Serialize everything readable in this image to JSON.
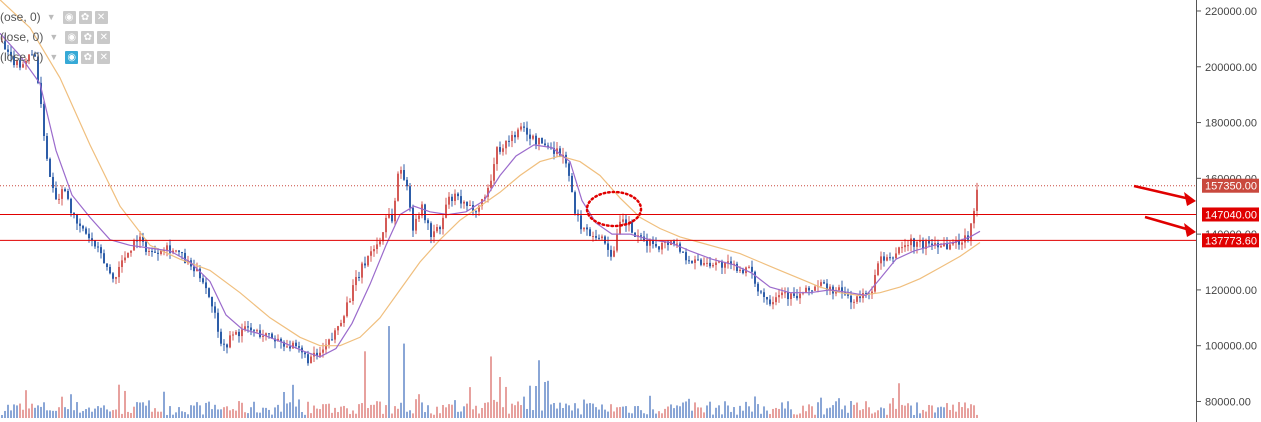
{
  "chart_data": {
    "type": "candlestick",
    "y_axis": {
      "ylim": [
        73000,
        222500
      ],
      "ticks": [
        220000,
        200000,
        180000,
        160000,
        140000,
        120000,
        100000,
        80000
      ],
      "tick_labels": [
        "220000.00",
        "200000.00",
        "180000.00",
        "160000.00",
        "140000.00",
        "120000.00",
        "100000.00",
        "80000.00"
      ]
    },
    "grid": false,
    "last_price": {
      "value": 157350,
      "label": "157350.00",
      "color": "#c9493e",
      "style": "dotted"
    },
    "levels": [
      {
        "value": 147040,
        "label": "147040.00",
        "color": "#e00000"
      },
      {
        "value": 137773.6,
        "label": "137773.60",
        "color": "#e00000"
      }
    ],
    "close_path": [
      [
        0,
        209000
      ],
      [
        8,
        203000
      ],
      [
        20,
        201000
      ],
      [
        34,
        205000
      ],
      [
        40,
        185000
      ],
      [
        48,
        162000
      ],
      [
        56,
        153000
      ],
      [
        64,
        157000
      ],
      [
        74,
        144000
      ],
      [
        86,
        140000
      ],
      [
        100,
        132000
      ],
      [
        112,
        124000
      ],
      [
        124,
        132000
      ],
      [
        136,
        139000
      ],
      [
        150,
        133000
      ],
      [
        164,
        136000
      ],
      [
        178,
        133000
      ],
      [
        190,
        128000
      ],
      [
        202,
        124000
      ],
      [
        212,
        114000
      ],
      [
        222,
        99000
      ],
      [
        232,
        104000
      ],
      [
        246,
        106000
      ],
      [
        262,
        104000
      ],
      [
        278,
        102000
      ],
      [
        294,
        99000
      ],
      [
        308,
        95000
      ],
      [
        320,
        97000
      ],
      [
        332,
        103000
      ],
      [
        344,
        113000
      ],
      [
        356,
        124000
      ],
      [
        368,
        133000
      ],
      [
        380,
        138000
      ],
      [
        386,
        148000
      ],
      [
        392,
        145000
      ],
      [
        398,
        165000
      ],
      [
        404,
        160000
      ],
      [
        412,
        143000
      ],
      [
        420,
        150000
      ],
      [
        430,
        140000
      ],
      [
        440,
        142000
      ],
      [
        446,
        152000
      ],
      [
        456,
        153000
      ],
      [
        466,
        149000
      ],
      [
        478,
        150000
      ],
      [
        488,
        157000
      ],
      [
        496,
        170000
      ],
      [
        506,
        173000
      ],
      [
        514,
        176000
      ],
      [
        522,
        178000
      ],
      [
        532,
        174000
      ],
      [
        544,
        172000
      ],
      [
        556,
        170000
      ],
      [
        566,
        166000
      ],
      [
        574,
        147000
      ],
      [
        584,
        141000
      ],
      [
        596,
        140000
      ],
      [
        604,
        137000
      ],
      [
        612,
        132000
      ],
      [
        620,
        145000
      ],
      [
        628,
        143000
      ],
      [
        636,
        138000
      ],
      [
        648,
        137000
      ],
      [
        660,
        136000
      ],
      [
        672,
        138000
      ],
      [
        682,
        133000
      ],
      [
        694,
        130000
      ],
      [
        708,
        130000
      ],
      [
        722,
        129000
      ],
      [
        736,
        128000
      ],
      [
        748,
        127000
      ],
      [
        758,
        120000
      ],
      [
        768,
        116000
      ],
      [
        780,
        120000
      ],
      [
        792,
        117000
      ],
      [
        804,
        119000
      ],
      [
        818,
        122000
      ],
      [
        830,
        120000
      ],
      [
        842,
        119000
      ],
      [
        852,
        116000
      ],
      [
        864,
        118000
      ],
      [
        872,
        121000
      ],
      [
        878,
        131000
      ],
      [
        888,
        130000
      ],
      [
        898,
        135000
      ],
      [
        910,
        137000
      ],
      [
        922,
        136000
      ],
      [
        934,
        137000
      ],
      [
        948,
        136000
      ],
      [
        962,
        138000
      ],
      [
        968,
        140000
      ],
      [
        972,
        148000
      ],
      [
        978,
        157350
      ]
    ],
    "ma_fast_path": [
      [
        0,
        212000
      ],
      [
        20,
        204000
      ],
      [
        40,
        194000
      ],
      [
        56,
        170000
      ],
      [
        72,
        154000
      ],
      [
        90,
        146000
      ],
      [
        110,
        138000
      ],
      [
        130,
        136000
      ],
      [
        150,
        135000
      ],
      [
        170,
        134000
      ],
      [
        190,
        130000
      ],
      [
        210,
        123000
      ],
      [
        226,
        111000
      ],
      [
        242,
        106000
      ],
      [
        262,
        104000
      ],
      [
        284,
        101000
      ],
      [
        304,
        98000
      ],
      [
        320,
        96000
      ],
      [
        336,
        99000
      ],
      [
        352,
        108000
      ],
      [
        370,
        122000
      ],
      [
        386,
        136000
      ],
      [
        400,
        147000
      ],
      [
        414,
        150000
      ],
      [
        430,
        148000
      ],
      [
        448,
        147000
      ],
      [
        466,
        148000
      ],
      [
        484,
        152000
      ],
      [
        500,
        161000
      ],
      [
        516,
        168000
      ],
      [
        534,
        172000
      ],
      [
        552,
        171000
      ],
      [
        570,
        166000
      ],
      [
        582,
        152000
      ],
      [
        596,
        144000
      ],
      [
        612,
        140000
      ],
      [
        630,
        140000
      ],
      [
        650,
        138000
      ],
      [
        670,
        137000
      ],
      [
        690,
        134000
      ],
      [
        712,
        131000
      ],
      [
        734,
        129000
      ],
      [
        752,
        126000
      ],
      [
        770,
        121000
      ],
      [
        790,
        119000
      ],
      [
        810,
        119000
      ],
      [
        830,
        120000
      ],
      [
        850,
        119000
      ],
      [
        866,
        118000
      ],
      [
        880,
        124000
      ],
      [
        896,
        131000
      ],
      [
        914,
        134000
      ],
      [
        934,
        136000
      ],
      [
        954,
        137000
      ],
      [
        970,
        139000
      ],
      [
        980,
        141000
      ]
    ],
    "ma_slow_path": [
      [
        0,
        224000
      ],
      [
        30,
        214000
      ],
      [
        60,
        196000
      ],
      [
        90,
        172000
      ],
      [
        120,
        150000
      ],
      [
        150,
        136000
      ],
      [
        180,
        131000
      ],
      [
        210,
        127000
      ],
      [
        240,
        119000
      ],
      [
        270,
        110000
      ],
      [
        300,
        103000
      ],
      [
        320,
        100000
      ],
      [
        340,
        100000
      ],
      [
        360,
        103000
      ],
      [
        380,
        110000
      ],
      [
        400,
        120000
      ],
      [
        420,
        130000
      ],
      [
        440,
        138000
      ],
      [
        460,
        145000
      ],
      [
        480,
        150000
      ],
      [
        500,
        155000
      ],
      [
        520,
        161000
      ],
      [
        540,
        166000
      ],
      [
        560,
        168000
      ],
      [
        580,
        166000
      ],
      [
        600,
        161000
      ],
      [
        620,
        153000
      ],
      [
        640,
        146000
      ],
      [
        660,
        142000
      ],
      [
        680,
        139000
      ],
      [
        700,
        137000
      ],
      [
        720,
        135000
      ],
      [
        740,
        133000
      ],
      [
        760,
        130000
      ],
      [
        780,
        127000
      ],
      [
        800,
        124000
      ],
      [
        820,
        121000
      ],
      [
        840,
        119000
      ],
      [
        860,
        118000
      ],
      [
        880,
        119000
      ],
      [
        900,
        121000
      ],
      [
        920,
        124000
      ],
      [
        940,
        128000
      ],
      [
        960,
        132000
      ],
      [
        980,
        137000
      ]
    ],
    "volume_note": "volume histogram along bottom, no separate scale",
    "colors": {
      "up": "#d45b57",
      "down": "#2d5da8",
      "ma_fast": "#9b6bcc",
      "ma_slow": "#f0bf7e",
      "vol_up": "#e7a19e",
      "vol_down": "#8aa6d6"
    },
    "annotations": [
      "dotted red ellipse around pullback",
      "two red arrows pointing at price labels"
    ]
  },
  "indicators": [
    {
      "label": "(ose, 0)"
    },
    {
      "label": "(lose, 0)"
    },
    {
      "label": "(lose, 0)"
    }
  ]
}
